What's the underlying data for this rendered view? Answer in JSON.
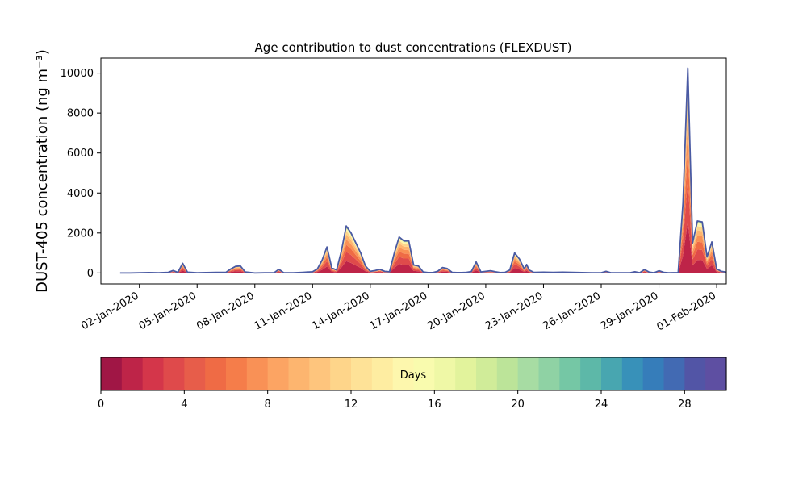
{
  "chart_data": {
    "type": "area",
    "title": "Age contribution to dust concentrations (FLEXDUST)",
    "xlabel": "",
    "ylabel": "DUST-405 concentration (ng m⁻³)",
    "ylim": [
      -550,
      10750
    ],
    "xlim": [
      "2019-12-31T00:00",
      "2020-02-01T12:00"
    ],
    "yticks": [
      0,
      2000,
      4000,
      6000,
      8000,
      10000
    ],
    "xtick_labels": [
      "02-Jan-2020",
      "05-Jan-2020",
      "08-Jan-2020",
      "11-Jan-2020",
      "14-Jan-2020",
      "17-Jan-2020",
      "20-Jan-2020",
      "23-Jan-2020",
      "26-Jan-2020",
      "29-Jan-2020",
      "01-Feb-2020"
    ],
    "xtick_dates": [
      "2020-01-02",
      "2020-01-05",
      "2020-01-08",
      "2020-01-11",
      "2020-01-14",
      "2020-01-17",
      "2020-01-20",
      "2020-01-23",
      "2020-01-26",
      "2020-01-29",
      "2020-02-01"
    ],
    "grid": false,
    "total_series": {
      "color": "#4a5aa3",
      "points": [
        [
          "2020-01-01T00:00",
          0
        ],
        [
          "2020-01-01T12:00",
          0
        ],
        [
          "2020-01-02T00:00",
          10
        ],
        [
          "2020-01-02T12:00",
          20
        ],
        [
          "2020-01-03T00:00",
          10
        ],
        [
          "2020-01-03T12:00",
          30
        ],
        [
          "2020-01-03T18:00",
          120
        ],
        [
          "2020-01-04T00:00",
          30
        ],
        [
          "2020-01-04T06:00",
          480
        ],
        [
          "2020-01-04T12:00",
          40
        ],
        [
          "2020-01-05T00:00",
          10
        ],
        [
          "2020-01-05T12:00",
          20
        ],
        [
          "2020-01-06T00:00",
          30
        ],
        [
          "2020-01-06T12:00",
          30
        ],
        [
          "2020-01-06T18:00",
          200
        ],
        [
          "2020-01-07T00:00",
          330
        ],
        [
          "2020-01-07T06:00",
          350
        ],
        [
          "2020-01-07T12:00",
          50
        ],
        [
          "2020-01-08T00:00",
          0
        ],
        [
          "2020-01-08T12:00",
          10
        ],
        [
          "2020-01-09T00:00",
          10
        ],
        [
          "2020-01-09T06:00",
          180
        ],
        [
          "2020-01-09T12:00",
          10
        ],
        [
          "2020-01-10T00:00",
          10
        ],
        [
          "2020-01-10T12:00",
          30
        ],
        [
          "2020-01-11T00:00",
          60
        ],
        [
          "2020-01-11T06:00",
          200
        ],
        [
          "2020-01-11T12:00",
          650
        ],
        [
          "2020-01-11T18:00",
          1300
        ],
        [
          "2020-01-12T00:00",
          250
        ],
        [
          "2020-01-12T06:00",
          150
        ],
        [
          "2020-01-12T12:00",
          1100
        ],
        [
          "2020-01-12T18:00",
          2350
        ],
        [
          "2020-01-13T00:00",
          2000
        ],
        [
          "2020-01-13T06:00",
          1500
        ],
        [
          "2020-01-13T12:00",
          1000
        ],
        [
          "2020-01-13T18:00",
          350
        ],
        [
          "2020-01-14T00:00",
          80
        ],
        [
          "2020-01-14T06:00",
          120
        ],
        [
          "2020-01-14T12:00",
          180
        ],
        [
          "2020-01-14T18:00",
          80
        ],
        [
          "2020-01-15T00:00",
          60
        ],
        [
          "2020-01-15T06:00",
          1000
        ],
        [
          "2020-01-15T12:00",
          1800
        ],
        [
          "2020-01-15T18:00",
          1600
        ],
        [
          "2020-01-16T00:00",
          1600
        ],
        [
          "2020-01-16T06:00",
          400
        ],
        [
          "2020-01-16T12:00",
          350
        ],
        [
          "2020-01-16T18:00",
          50
        ],
        [
          "2020-01-17T00:00",
          20
        ],
        [
          "2020-01-17T06:00",
          20
        ],
        [
          "2020-01-17T12:00",
          80
        ],
        [
          "2020-01-17T18:00",
          270
        ],
        [
          "2020-01-18T00:00",
          220
        ],
        [
          "2020-01-18T06:00",
          30
        ],
        [
          "2020-01-18T12:00",
          20
        ],
        [
          "2020-01-18T18:00",
          20
        ],
        [
          "2020-01-19T00:00",
          30
        ],
        [
          "2020-01-19T06:00",
          70
        ],
        [
          "2020-01-19T12:00",
          550
        ],
        [
          "2020-01-19T18:00",
          50
        ],
        [
          "2020-01-20T00:00",
          80
        ],
        [
          "2020-01-20T06:00",
          110
        ],
        [
          "2020-01-20T12:00",
          60
        ],
        [
          "2020-01-20T18:00",
          20
        ],
        [
          "2020-01-21T00:00",
          30
        ],
        [
          "2020-01-21T06:00",
          150
        ],
        [
          "2020-01-21T12:00",
          1000
        ],
        [
          "2020-01-21T18:00",
          700
        ],
        [
          "2020-01-22T00:00",
          200
        ],
        [
          "2020-01-22T03:00",
          420
        ],
        [
          "2020-01-22T06:00",
          150
        ],
        [
          "2020-01-22T12:00",
          30
        ],
        [
          "2020-01-23T00:00",
          40
        ],
        [
          "2020-01-23T12:00",
          30
        ],
        [
          "2020-01-24T00:00",
          40
        ],
        [
          "2020-01-24T12:00",
          30
        ],
        [
          "2020-01-25T00:00",
          20
        ],
        [
          "2020-01-25T12:00",
          10
        ],
        [
          "2020-01-26T00:00",
          10
        ],
        [
          "2020-01-26T06:00",
          80
        ],
        [
          "2020-01-26T12:00",
          10
        ],
        [
          "2020-01-27T00:00",
          10
        ],
        [
          "2020-01-27T12:00",
          10
        ],
        [
          "2020-01-27T18:00",
          60
        ],
        [
          "2020-01-28T00:00",
          10
        ],
        [
          "2020-01-28T06:00",
          170
        ],
        [
          "2020-01-28T12:00",
          40
        ],
        [
          "2020-01-28T18:00",
          10
        ],
        [
          "2020-01-29T00:00",
          110
        ],
        [
          "2020-01-29T06:00",
          30
        ],
        [
          "2020-01-29T12:00",
          10
        ],
        [
          "2020-01-30T00:00",
          20
        ],
        [
          "2020-01-30T06:00",
          3500
        ],
        [
          "2020-01-30T12:00",
          10250
        ],
        [
          "2020-01-30T18:00",
          1500
        ],
        [
          "2020-01-31T00:00",
          2600
        ],
        [
          "2020-01-31T06:00",
          2550
        ],
        [
          "2020-01-31T12:00",
          800
        ],
        [
          "2020-01-31T18:00",
          1550
        ],
        [
          "2020-02-01T00:00",
          200
        ],
        [
          "2020-02-01T06:00",
          80
        ],
        [
          "2020-02-01T12:00",
          40
        ]
      ]
    },
    "colorbar": {
      "label": "Days",
      "range": [
        0,
        30
      ],
      "ticks": [
        0,
        4,
        8,
        12,
        16,
        20,
        24,
        28
      ],
      "colors": [
        "#a01645",
        "#be2448",
        "#d4364a",
        "#df4a4b",
        "#e75d4a",
        "#ef6b45",
        "#f57d4a",
        "#f99156",
        "#fca463",
        "#fdb56f",
        "#fec57d",
        "#fed58a",
        "#fee297",
        "#feeda1",
        "#fdf7ad",
        "#f9fbae",
        "#eff8a6",
        "#e2f39c",
        "#d0ec99",
        "#bce499",
        "#a7dca3",
        "#8fd2a4",
        "#75c7a5",
        "#5db8a8",
        "#48a6b0",
        "#3891b9",
        "#367dba",
        "#426ab3",
        "#5255a6",
        "#5e4fa2"
      ]
    }
  }
}
